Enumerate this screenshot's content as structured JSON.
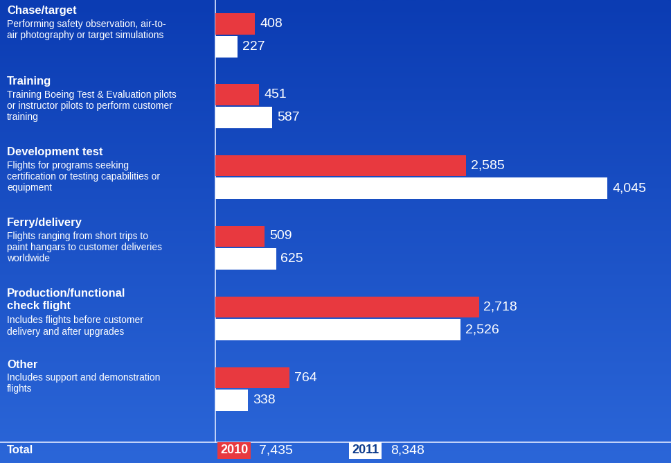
{
  "chart_data": {
    "type": "bar",
    "orientation": "horizontal",
    "data_labels": true,
    "tick_labels": false,
    "categories": [
      "Chase/target",
      "Training",
      "Development test",
      "Ferry/delivery",
      "Production/functional check flight",
      "Other"
    ],
    "descriptions": [
      "Performing safety observation, air-to-air photography or target simulations",
      "Training Boeing Test & Evaluation pilots or instructor pilots to perform customer training",
      "Flights for programs seeking certification or testing capabilities or equipment",
      "Flights ranging from short trips to paint hangars to customer deliveries worldwide",
      "Includes flights before customer delivery and after upgrades",
      "Includes support and demonstration flights"
    ],
    "xlim": [
      0,
      4700
    ],
    "series": [
      {
        "name": "2010",
        "color": "#e8393f",
        "values": [
          408,
          451,
          2585,
          509,
          2718,
          764
        ],
        "value_labels": [
          "408",
          "451",
          "2,585",
          "509",
          "2,718",
          "764"
        ],
        "total": 7435,
        "total_label": "7,435"
      },
      {
        "name": "2011",
        "color": "#ffffff",
        "values": [
          227,
          587,
          4045,
          625,
          2526,
          338
        ],
        "value_labels": [
          "227",
          "587",
          "4,045",
          "625",
          "2,526",
          "338"
        ],
        "total": 8348,
        "total_label": "8,348"
      }
    ],
    "total_title": "Total"
  }
}
